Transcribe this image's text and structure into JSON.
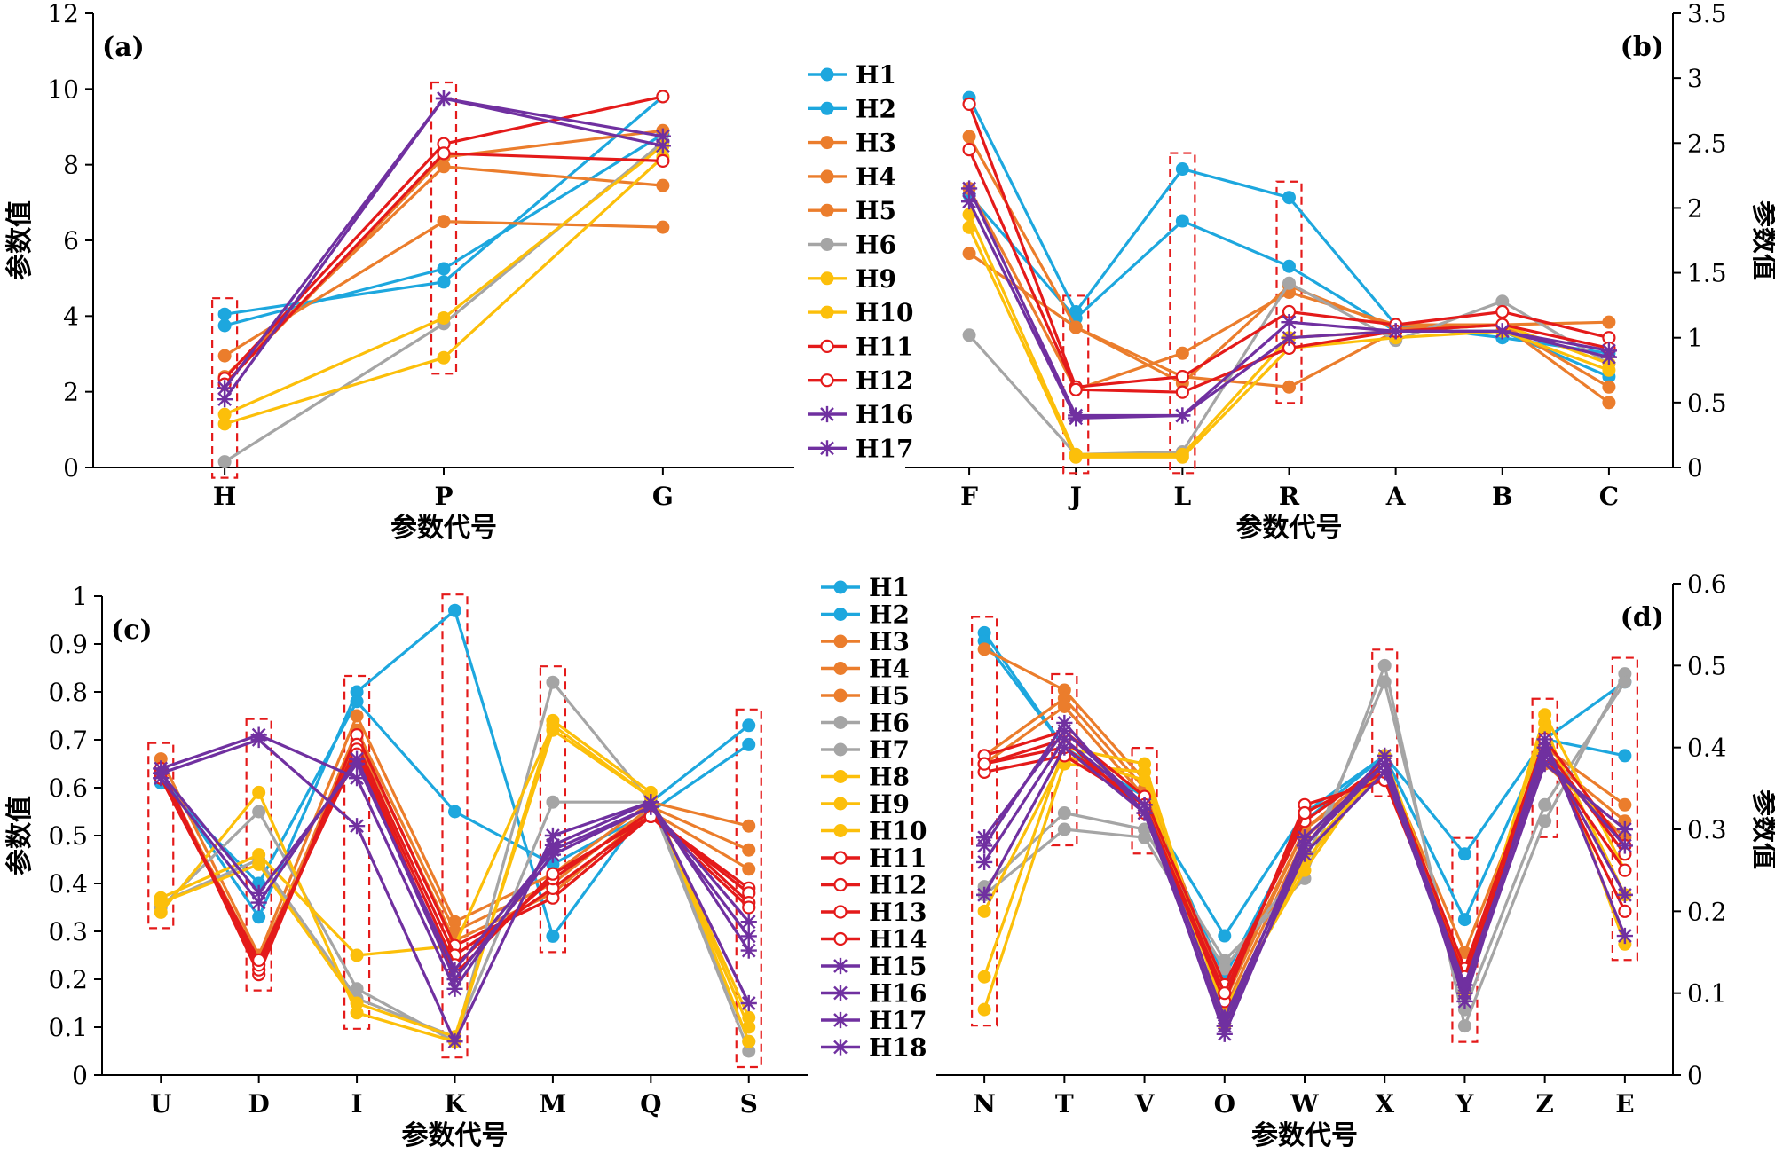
{
  "chart_data": [
    {
      "panel": "(a)",
      "type": "line",
      "axis_side": "left",
      "categories": [
        "H",
        "P",
        "G"
      ],
      "xlabel": "参数代号",
      "ylabel": "参数值",
      "ylim": [
        0,
        12
      ],
      "yticks": [
        0,
        2,
        4,
        6,
        8,
        10,
        12
      ],
      "highlight_categories": [
        "H",
        "P"
      ],
      "legend_placement": "right",
      "series": [
        {
          "name": "H1",
          "color": "#1DA7DE",
          "marker": "dot",
          "values": [
            4.05,
            4.9,
            9.8
          ]
        },
        {
          "name": "H2",
          "color": "#1DA7DE",
          "marker": "dot",
          "values": [
            3.75,
            5.25,
            8.8
          ]
        },
        {
          "name": "H3",
          "color": "#EB7D2C",
          "marker": "dot",
          "values": [
            2.95,
            6.5,
            6.35
          ]
        },
        {
          "name": "H4",
          "color": "#EB7D2C",
          "marker": "dot",
          "values": [
            2.2,
            8.2,
            8.9
          ]
        },
        {
          "name": "H5",
          "color": "#EB7D2C",
          "marker": "dot",
          "values": [
            2.4,
            7.95,
            7.45
          ]
        },
        {
          "name": "H6",
          "color": "#A5A5A5",
          "marker": "dot",
          "values": [
            0.15,
            3.8,
            8.6
          ]
        },
        {
          "name": "H9",
          "color": "#FCBF0A",
          "marker": "dot",
          "values": [
            1.15,
            2.9,
            8.2
          ]
        },
        {
          "name": "H10",
          "color": "#FCBF0A",
          "marker": "dot",
          "values": [
            1.4,
            3.95,
            8.5
          ]
        },
        {
          "name": "H11",
          "color": "#E41A1A",
          "marker": "ring",
          "values": [
            2.35,
            8.55,
            9.8
          ]
        },
        {
          "name": "H12",
          "color": "#E41A1A",
          "marker": "ring",
          "values": [
            2.2,
            8.3,
            8.1
          ]
        },
        {
          "name": "H16",
          "color": "#7030A0",
          "marker": "star",
          "values": [
            1.8,
            9.75,
            8.75
          ]
        },
        {
          "name": "H17",
          "color": "#7030A0",
          "marker": "star",
          "values": [
            2.1,
            9.75,
            8.5
          ]
        }
      ]
    },
    {
      "panel": "(b)",
      "type": "line",
      "axis_side": "right",
      "categories": [
        "F",
        "J",
        "L",
        "R",
        "A",
        "B",
        "C"
      ],
      "xlabel": "参数代号",
      "ylabel": "参数值",
      "ylim": [
        0,
        3.5
      ],
      "yticks": [
        0,
        0.5,
        1,
        1.5,
        2,
        2.5,
        3,
        3.5
      ],
      "highlight_categories": [
        "J",
        "L",
        "R"
      ],
      "series": [
        {
          "name": "H1",
          "color": "#1DA7DE",
          "marker": "dot",
          "values": [
            2.85,
            1.2,
            2.3,
            2.08,
            1.1,
            1.0,
            0.88
          ]
        },
        {
          "name": "H2",
          "color": "#1DA7DE",
          "marker": "dot",
          "values": [
            2.1,
            1.15,
            1.9,
            1.55,
            1.05,
            1.05,
            0.7
          ]
        },
        {
          "name": "H3",
          "color": "#EB7D2C",
          "marker": "dot",
          "values": [
            2.55,
            1.08,
            0.7,
            0.62,
            1.05,
            1.1,
            0.62
          ]
        },
        {
          "name": "H4",
          "color": "#EB7D2C",
          "marker": "dot",
          "values": [
            2.15,
            0.6,
            0.88,
            1.35,
            1.1,
            1.1,
            1.12
          ]
        },
        {
          "name": "H5",
          "color": "#EB7D2C",
          "marker": "dot",
          "values": [
            1.65,
            1.08,
            0.65,
            1.4,
            1.07,
            1.1,
            0.5
          ]
        },
        {
          "name": "H6",
          "color": "#A5A5A5",
          "marker": "dot",
          "values": [
            1.02,
            0.1,
            0.12,
            1.42,
            0.98,
            1.28,
            0.8
          ]
        },
        {
          "name": "H9",
          "color": "#FCBF0A",
          "marker": "dot",
          "values": [
            1.85,
            0.08,
            0.08,
            0.92,
            1.0,
            1.05,
            0.75
          ]
        },
        {
          "name": "H10",
          "color": "#FCBF0A",
          "marker": "dot",
          "values": [
            1.95,
            0.1,
            0.1,
            1.0,
            1.05,
            1.1,
            0.8
          ]
        },
        {
          "name": "H11",
          "color": "#E41A1A",
          "marker": "ring",
          "values": [
            2.8,
            0.62,
            0.7,
            1.2,
            1.1,
            1.2,
            1.0
          ]
        },
        {
          "name": "H12",
          "color": "#E41A1A",
          "marker": "ring",
          "values": [
            2.45,
            0.6,
            0.58,
            0.92,
            1.05,
            1.1,
            0.92
          ]
        },
        {
          "name": "H16",
          "color": "#7030A0",
          "marker": "star",
          "values": [
            2.05,
            0.38,
            0.4,
            1.12,
            1.05,
            1.05,
            0.9
          ]
        },
        {
          "name": "H17",
          "color": "#7030A0",
          "marker": "star",
          "values": [
            2.15,
            0.4,
            0.4,
            1.0,
            1.05,
            1.05,
            0.85
          ]
        }
      ]
    },
    {
      "panel": "(c)",
      "type": "line",
      "axis_side": "left",
      "categories": [
        "U",
        "D",
        "I",
        "K",
        "M",
        "Q",
        "S"
      ],
      "xlabel": "参数代号",
      "ylabel": "参数值",
      "ylim": [
        0,
        1
      ],
      "yticks": [
        0,
        0.1,
        0.2,
        0.3,
        0.4,
        0.5,
        0.6,
        0.7,
        0.8,
        0.9,
        1
      ],
      "highlight_categories": [
        "U",
        "D",
        "I",
        "K",
        "M",
        "S"
      ],
      "legend_placement": "right",
      "series": [
        {
          "name": "H1",
          "color": "#1DA7DE",
          "marker": "dot",
          "values": [
            0.63,
            0.33,
            0.8,
            0.97,
            0.29,
            0.57,
            0.73
          ]
        },
        {
          "name": "H2",
          "color": "#1DA7DE",
          "marker": "dot",
          "values": [
            0.61,
            0.4,
            0.78,
            0.55,
            0.44,
            0.55,
            0.69
          ]
        },
        {
          "name": "H3",
          "color": "#EB7D2C",
          "marker": "dot",
          "values": [
            0.66,
            0.25,
            0.75,
            0.32,
            0.42,
            0.57,
            0.52
          ]
        },
        {
          "name": "H4",
          "color": "#EB7D2C",
          "marker": "dot",
          "values": [
            0.64,
            0.22,
            0.72,
            0.3,
            0.4,
            0.56,
            0.47
          ]
        },
        {
          "name": "H5",
          "color": "#EB7D2C",
          "marker": "dot",
          "values": [
            0.63,
            0.24,
            0.7,
            0.28,
            0.38,
            0.55,
            0.43
          ]
        },
        {
          "name": "H6",
          "color": "#A5A5A5",
          "marker": "dot",
          "values": [
            0.35,
            0.55,
            0.18,
            0.07,
            0.82,
            0.57,
            0.05
          ]
        },
        {
          "name": "H7",
          "color": "#A5A5A5",
          "marker": "dot",
          "values": [
            0.36,
            0.45,
            0.16,
            0.08,
            0.57,
            0.57,
            0.07
          ]
        },
        {
          "name": "H8",
          "color": "#FCBF0A",
          "marker": "dot",
          "values": [
            0.34,
            0.59,
            0.13,
            0.07,
            0.74,
            0.59,
            0.07
          ]
        },
        {
          "name": "H9",
          "color": "#FCBF0A",
          "marker": "dot",
          "values": [
            0.37,
            0.46,
            0.25,
            0.27,
            0.73,
            0.58,
            0.12
          ]
        },
        {
          "name": "H10",
          "color": "#FCBF0A",
          "marker": "dot",
          "values": [
            0.36,
            0.44,
            0.15,
            0.08,
            0.72,
            0.58,
            0.1
          ]
        },
        {
          "name": "H11",
          "color": "#E41A1A",
          "marker": "ring",
          "values": [
            0.64,
            0.21,
            0.71,
            0.27,
            0.37,
            0.54,
            0.39
          ]
        },
        {
          "name": "H12",
          "color": "#E41A1A",
          "marker": "ring",
          "values": [
            0.63,
            0.22,
            0.69,
            0.25,
            0.39,
            0.54,
            0.38
          ]
        },
        {
          "name": "H13",
          "color": "#E41A1A",
          "marker": "ring",
          "values": [
            0.62,
            0.23,
            0.68,
            0.23,
            0.41,
            0.55,
            0.36
          ]
        },
        {
          "name": "H14",
          "color": "#E41A1A",
          "marker": "ring",
          "values": [
            0.62,
            0.24,
            0.67,
            0.21,
            0.42,
            0.54,
            0.35
          ]
        },
        {
          "name": "H15",
          "color": "#7030A0",
          "marker": "star",
          "values": [
            0.63,
            0.7,
            0.52,
            0.07,
            0.5,
            0.57,
            0.15
          ]
        },
        {
          "name": "H16",
          "color": "#7030A0",
          "marker": "star",
          "values": [
            0.64,
            0.71,
            0.62,
            0.18,
            0.48,
            0.57,
            0.26
          ]
        },
        {
          "name": "H17",
          "color": "#7030A0",
          "marker": "star",
          "values": [
            0.62,
            0.36,
            0.66,
            0.2,
            0.46,
            0.56,
            0.29
          ]
        },
        {
          "name": "H18",
          "color": "#7030A0",
          "marker": "star",
          "values": [
            0.63,
            0.38,
            0.65,
            0.22,
            0.47,
            0.56,
            0.32
          ]
        }
      ]
    },
    {
      "panel": "(d)",
      "type": "line",
      "axis_side": "right",
      "categories": [
        "N",
        "T",
        "V",
        "O",
        "W",
        "X",
        "Y",
        "Z",
        "E"
      ],
      "xlabel": "参数代号",
      "ylabel": "参数值",
      "ylim": [
        0,
        0.6
      ],
      "yticks": [
        0,
        0.1,
        0.2,
        0.3,
        0.4,
        0.5,
        0.6
      ],
      "highlight_categories": [
        "N",
        "T",
        "V",
        "X",
        "Y",
        "Z",
        "E"
      ],
      "series": [
        {
          "name": "H1",
          "color": "#1DA7DE",
          "marker": "dot",
          "values": [
            0.54,
            0.4,
            0.33,
            0.17,
            0.32,
            0.39,
            0.27,
            0.41,
            0.39
          ]
        },
        {
          "name": "H2",
          "color": "#1DA7DE",
          "marker": "dot",
          "values": [
            0.53,
            0.4,
            0.34,
            0.12,
            0.31,
            0.39,
            0.19,
            0.41,
            0.48
          ]
        },
        {
          "name": "H3",
          "color": "#EB7D2C",
          "marker": "dot",
          "values": [
            0.52,
            0.47,
            0.36,
            0.1,
            0.3,
            0.38,
            0.15,
            0.4,
            0.33
          ]
        },
        {
          "name": "H4",
          "color": "#EB7D2C",
          "marker": "dot",
          "values": [
            0.39,
            0.46,
            0.35,
            0.08,
            0.29,
            0.37,
            0.12,
            0.39,
            0.31
          ]
        },
        {
          "name": "H5",
          "color": "#EB7D2C",
          "marker": "dot",
          "values": [
            0.38,
            0.45,
            0.34,
            0.09,
            0.3,
            0.37,
            0.13,
            0.38,
            0.29
          ]
        },
        {
          "name": "H6",
          "color": "#A5A5A5",
          "marker": "dot",
          "values": [
            0.23,
            0.32,
            0.3,
            0.14,
            0.24,
            0.5,
            0.06,
            0.31,
            0.49
          ]
        },
        {
          "name": "H7",
          "color": "#A5A5A5",
          "marker": "dot",
          "values": [
            0.22,
            0.3,
            0.29,
            0.13,
            0.26,
            0.48,
            0.08,
            0.33,
            0.48
          ]
        },
        {
          "name": "H8",
          "color": "#FCBF0A",
          "marker": "dot",
          "values": [
            0.08,
            0.38,
            0.37,
            0.08,
            0.25,
            0.39,
            0.12,
            0.43,
            0.16
          ]
        },
        {
          "name": "H9",
          "color": "#FCBF0A",
          "marker": "dot",
          "values": [
            0.12,
            0.4,
            0.38,
            0.07,
            0.26,
            0.38,
            0.1,
            0.42,
            0.22
          ]
        },
        {
          "name": "H10",
          "color": "#FCBF0A",
          "marker": "dot",
          "values": [
            0.2,
            0.39,
            0.36,
            0.06,
            0.27,
            0.38,
            0.11,
            0.44,
            0.25
          ]
        },
        {
          "name": "H11",
          "color": "#E41A1A",
          "marker": "ring",
          "values": [
            0.38,
            0.41,
            0.32,
            0.1,
            0.32,
            0.37,
            0.11,
            0.4,
            0.2
          ]
        },
        {
          "name": "H12",
          "color": "#E41A1A",
          "marker": "ring",
          "values": [
            0.37,
            0.39,
            0.33,
            0.09,
            0.33,
            0.36,
            0.12,
            0.39,
            0.25
          ]
        },
        {
          "name": "H13",
          "color": "#E41A1A",
          "marker": "ring",
          "values": [
            0.39,
            0.42,
            0.34,
            0.11,
            0.31,
            0.38,
            0.13,
            0.41,
            0.28
          ]
        },
        {
          "name": "H14",
          "color": "#E41A1A",
          "marker": "ring",
          "values": [
            0.38,
            0.4,
            0.33,
            0.1,
            0.32,
            0.37,
            0.12,
            0.4,
            0.27
          ]
        },
        {
          "name": "H15",
          "color": "#7030A0",
          "marker": "star",
          "values": [
            0.26,
            0.41,
            0.33,
            0.05,
            0.28,
            0.39,
            0.09,
            0.41,
            0.17
          ]
        },
        {
          "name": "H16",
          "color": "#7030A0",
          "marker": "star",
          "values": [
            0.28,
            0.43,
            0.32,
            0.06,
            0.29,
            0.38,
            0.1,
            0.4,
            0.22
          ]
        },
        {
          "name": "H17",
          "color": "#7030A0",
          "marker": "star",
          "values": [
            0.29,
            0.42,
            0.33,
            0.07,
            0.28,
            0.38,
            0.11,
            0.39,
            0.28
          ]
        },
        {
          "name": "H18",
          "color": "#7030A0",
          "marker": "star",
          "values": [
            0.22,
            0.4,
            0.32,
            0.06,
            0.27,
            0.37,
            0.1,
            0.38,
            0.3
          ]
        }
      ]
    }
  ]
}
